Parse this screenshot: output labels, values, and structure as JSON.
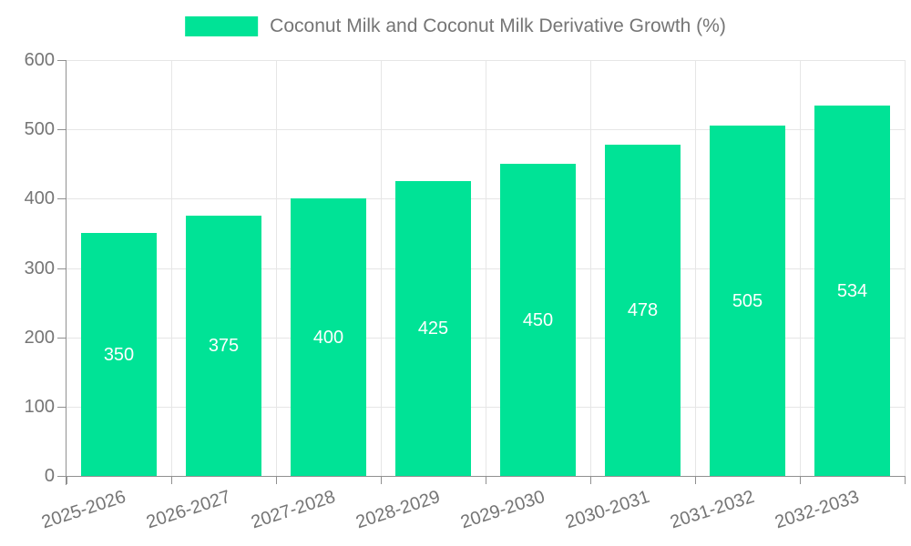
{
  "legend": {
    "label": "Coconut Milk and Coconut Milk Derivative Growth (%)",
    "swatch_color": "#00E396"
  },
  "chart_data": {
    "type": "bar",
    "title": "Coconut Milk and Coconut Milk Derivative Growth (%)",
    "categories": [
      "2025-2026",
      "2026-2027",
      "2027-2028",
      "2028-2029",
      "2029-2030",
      "2030-2031",
      "2031-2032",
      "2032-2033"
    ],
    "values": [
      350,
      375,
      400,
      425,
      450,
      478,
      505,
      534
    ],
    "xlabel": "",
    "ylabel": "",
    "ylim": [
      0,
      600
    ],
    "ytick_step": 100,
    "yticks": [
      0,
      100,
      200,
      300,
      400,
      500,
      600
    ],
    "grid": true,
    "legend_position": "top",
    "bar_color": "#00E396",
    "value_label_color": "#ffffff",
    "axis_text_color": "#757575",
    "grid_color": "#e6e6e6",
    "axis_line_color": "#909090"
  }
}
